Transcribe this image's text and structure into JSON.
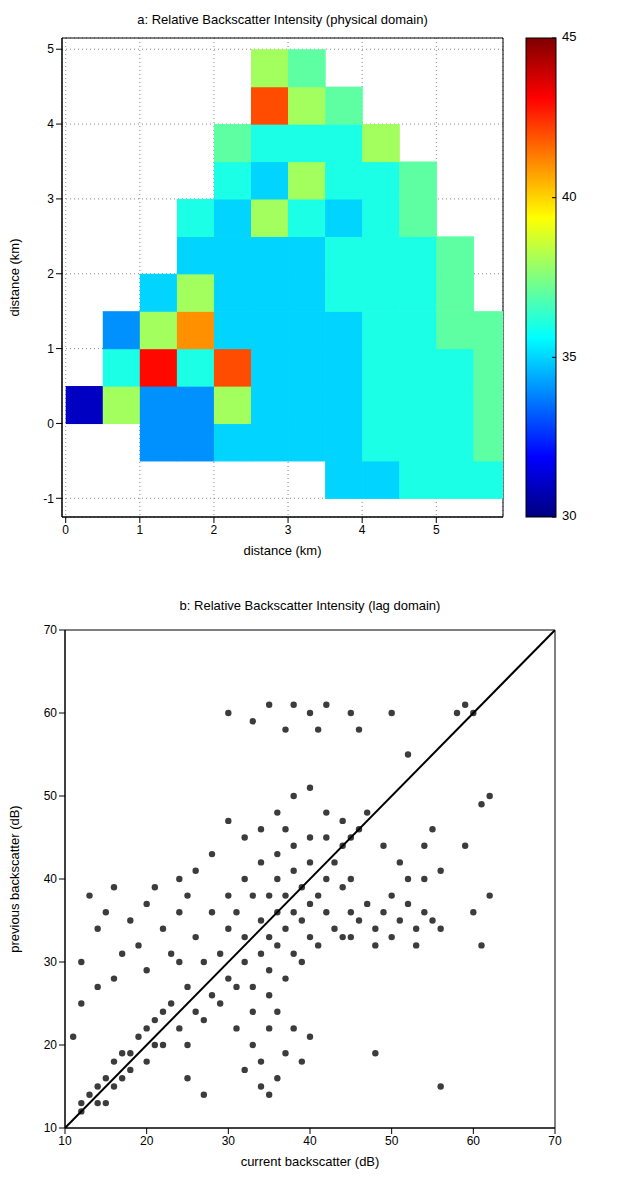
{
  "chart_data": [
    {
      "type": "heatmap",
      "title": "a: Relative Backscatter Intensity (physical domain)",
      "x_label": "distance (km)",
      "y_label": "distance (km)",
      "xlim": [
        -0.05,
        5.9
      ],
      "ylim": [
        -1.25,
        5.15
      ],
      "xticks": [
        0,
        1,
        2,
        3,
        4,
        5
      ],
      "yticks": [
        -1,
        0,
        1,
        2,
        3,
        4,
        5
      ],
      "grid": true,
      "cells": [
        [
          3.75,
          -0.75,
          35
        ],
        [
          4.25,
          -0.75,
          35
        ],
        [
          4.75,
          -0.75,
          36
        ],
        [
          5.25,
          -0.75,
          36
        ],
        [
          5.75,
          -0.75,
          36
        ],
        [
          1.25,
          -0.25,
          34
        ],
        [
          1.75,
          -0.25,
          34
        ],
        [
          2.25,
          -0.25,
          35
        ],
        [
          2.75,
          -0.25,
          35
        ],
        [
          3.25,
          -0.25,
          35
        ],
        [
          3.75,
          -0.25,
          35
        ],
        [
          4.25,
          -0.25,
          36
        ],
        [
          4.75,
          -0.25,
          36
        ],
        [
          5.25,
          -0.25,
          36
        ],
        [
          5.75,
          -0.25,
          37
        ],
        [
          0.25,
          0.25,
          31
        ],
        [
          0.75,
          0.25,
          38
        ],
        [
          1.25,
          0.25,
          34
        ],
        [
          1.75,
          0.25,
          34
        ],
        [
          2.25,
          0.25,
          38
        ],
        [
          2.75,
          0.25,
          35
        ],
        [
          3.25,
          0.25,
          35
        ],
        [
          3.75,
          0.25,
          35
        ],
        [
          4.25,
          0.25,
          36
        ],
        [
          4.75,
          0.25,
          36
        ],
        [
          5.25,
          0.25,
          36
        ],
        [
          5.75,
          0.25,
          37
        ],
        [
          0.75,
          0.75,
          36
        ],
        [
          1.25,
          0.75,
          43
        ],
        [
          1.75,
          0.75,
          36
        ],
        [
          2.25,
          0.75,
          42
        ],
        [
          2.75,
          0.75,
          35
        ],
        [
          3.25,
          0.75,
          35
        ],
        [
          3.75,
          0.75,
          35
        ],
        [
          4.25,
          0.75,
          36
        ],
        [
          4.75,
          0.75,
          36
        ],
        [
          5.25,
          0.75,
          36
        ],
        [
          5.75,
          0.75,
          37
        ],
        [
          0.75,
          1.25,
          34
        ],
        [
          1.25,
          1.25,
          38
        ],
        [
          1.75,
          1.25,
          41
        ],
        [
          2.25,
          1.25,
          35
        ],
        [
          2.75,
          1.25,
          35
        ],
        [
          3.25,
          1.25,
          35
        ],
        [
          3.75,
          1.25,
          35
        ],
        [
          4.25,
          1.25,
          36
        ],
        [
          4.75,
          1.25,
          36
        ],
        [
          5.25,
          1.25,
          37
        ],
        [
          5.75,
          1.25,
          37
        ],
        [
          1.25,
          1.75,
          35
        ],
        [
          1.75,
          1.75,
          38
        ],
        [
          2.25,
          1.75,
          35
        ],
        [
          2.75,
          1.75,
          35
        ],
        [
          3.25,
          1.75,
          35
        ],
        [
          3.75,
          1.75,
          36
        ],
        [
          4.25,
          1.75,
          36
        ],
        [
          4.75,
          1.75,
          36
        ],
        [
          5.25,
          1.75,
          37
        ],
        [
          1.75,
          2.25,
          35
        ],
        [
          2.25,
          2.25,
          35
        ],
        [
          2.75,
          2.25,
          35
        ],
        [
          3.25,
          2.25,
          35
        ],
        [
          3.75,
          2.25,
          36
        ],
        [
          4.25,
          2.25,
          36
        ],
        [
          4.75,
          2.25,
          36
        ],
        [
          5.25,
          2.25,
          37
        ],
        [
          1.75,
          2.75,
          36
        ],
        [
          2.25,
          2.75,
          35
        ],
        [
          2.75,
          2.75,
          38
        ],
        [
          3.25,
          2.75,
          36
        ],
        [
          3.75,
          2.75,
          35
        ],
        [
          4.25,
          2.75,
          36
        ],
        [
          4.75,
          2.75,
          37
        ],
        [
          2.25,
          3.25,
          36
        ],
        [
          2.75,
          3.25,
          35
        ],
        [
          3.25,
          3.25,
          38
        ],
        [
          3.75,
          3.25,
          36
        ],
        [
          4.25,
          3.25,
          36
        ],
        [
          4.75,
          3.25,
          37
        ],
        [
          2.25,
          3.75,
          37
        ],
        [
          2.75,
          3.75,
          36
        ],
        [
          3.25,
          3.75,
          36
        ],
        [
          3.75,
          3.75,
          36
        ],
        [
          4.25,
          3.75,
          38
        ],
        [
          2.75,
          4.25,
          42
        ],
        [
          3.25,
          4.25,
          38
        ],
        [
          3.75,
          4.25,
          37
        ],
        [
          2.75,
          4.75,
          38
        ],
        [
          3.25,
          4.75,
          37
        ]
      ],
      "colorbar": {
        "range": [
          30,
          45
        ],
        "ticks": [
          30,
          35,
          40,
          45
        ]
      }
    },
    {
      "type": "scatter",
      "title": "b: Relative Backscatter Intensity (lag domain)",
      "x_label": "current backscatter (dB)",
      "y_label": "previous backscatter (dB)",
      "xlim": [
        10,
        70
      ],
      "ylim": [
        10,
        70
      ],
      "xticks": [
        10,
        20,
        30,
        40,
        50,
        60,
        70
      ],
      "yticks": [
        10,
        20,
        30,
        40,
        50,
        60,
        70
      ],
      "grid": false,
      "series": [
        {
          "type": "scatter",
          "marker": "circle",
          "color": "#3c3c3c",
          "x": [
            22,
            24,
            25,
            26,
            27,
            28,
            29,
            30,
            30,
            31,
            32,
            32,
            33,
            33,
            34,
            34,
            35,
            35,
            35,
            36,
            36,
            36,
            37,
            37,
            38,
            38,
            38,
            39,
            39,
            40,
            40,
            40,
            41,
            42,
            42,
            43,
            44,
            44,
            45,
            46,
            30,
            28,
            26,
            24,
            32,
            34,
            36,
            38,
            40,
            42,
            33,
            35,
            37,
            39,
            41,
            43,
            45,
            45,
            44,
            23,
            21,
            25,
            27,
            29,
            31,
            31,
            12,
            13,
            14,
            15,
            16,
            16,
            17,
            18,
            18,
            19,
            20,
            20,
            21,
            22,
            14,
            12,
            15,
            17,
            33,
            34,
            35,
            36,
            37,
            35,
            38,
            32,
            39,
            36,
            34,
            40,
            13,
            15,
            16,
            18,
            20,
            22,
            19,
            24,
            17,
            21,
            14,
            23,
            12,
            20,
            25,
            16,
            46,
            48,
            49,
            50,
            51,
            52,
            53,
            54,
            55,
            47,
            50,
            53,
            56,
            48,
            45,
            49,
            51,
            54,
            56,
            52,
            55,
            36,
            38,
            34,
            40,
            37,
            42,
            32,
            28,
            26,
            44,
            47,
            30,
            30,
            33,
            35,
            38,
            40,
            42,
            45,
            37,
            41,
            46,
            50,
            52,
            58,
            59,
            60,
            61,
            60,
            61,
            62,
            59,
            56,
            48,
            12,
            11,
            14,
            27,
            25,
            24,
            62,
            54
          ],
          "values": [
            20,
            22,
            27,
            24,
            30,
            26,
            31,
            28,
            34,
            36,
            30,
            33,
            27,
            38,
            35,
            31,
            33,
            38,
            29,
            36,
            40,
            32,
            34,
            38,
            36,
            41,
            31,
            35,
            39,
            37,
            42,
            33,
            38,
            40,
            36,
            42,
            44,
            39,
            45,
            46,
            38,
            36,
            33,
            30,
            40,
            42,
            43,
            44,
            45,
            45,
            24,
            26,
            28,
            30,
            32,
            34,
            36,
            40,
            33,
            25,
            23,
            20,
            23,
            25,
            27,
            22,
            12,
            14,
            13,
            16,
            15,
            18,
            16,
            19,
            17,
            21,
            18,
            22,
            20,
            24,
            15,
            13,
            13,
            19,
            20,
            18,
            22,
            16,
            19,
            14,
            22,
            17,
            18,
            24,
            15,
            21,
            38,
            36,
            39,
            35,
            37,
            34,
            32,
            36,
            31,
            39,
            34,
            31,
            30,
            29,
            38,
            28,
            35,
            34,
            36,
            33,
            35,
            37,
            34,
            36,
            35,
            37,
            38,
            32,
            34,
            32,
            33,
            44,
            42,
            44,
            41,
            40,
            46,
            48,
            50,
            46,
            51,
            46,
            48,
            45,
            43,
            41,
            47,
            48,
            47,
            60,
            59,
            61,
            61,
            60,
            61,
            60,
            58,
            58,
            58,
            60,
            55,
            60,
            61,
            60,
            49,
            36,
            32,
            38,
            44,
            15,
            19,
            25,
            21,
            27,
            14,
            16,
            40,
            50,
            40
          ]
        },
        {
          "type": "line",
          "marker": "none",
          "line_style": "solid",
          "color": "#000000",
          "x": [
            10,
            70
          ],
          "values": [
            10,
            70
          ]
        }
      ]
    }
  ]
}
